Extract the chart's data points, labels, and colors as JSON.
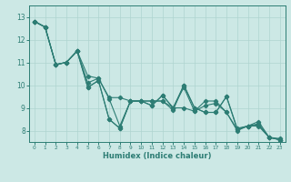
{
  "title": "",
  "xlabel": "Humidex (Indice chaleur)",
  "ylabel": "",
  "bg_color": "#cce8e5",
  "line_color": "#2d7d74",
  "grid_color": "#afd4d0",
  "xlim": [
    -0.5,
    23.5
  ],
  "ylim": [
    7.5,
    13.5
  ],
  "yticks": [
    8,
    9,
    10,
    11,
    12,
    13
  ],
  "xticks": [
    0,
    1,
    2,
    3,
    4,
    5,
    6,
    7,
    8,
    9,
    10,
    11,
    12,
    13,
    14,
    15,
    16,
    17,
    18,
    19,
    20,
    21,
    22,
    23
  ],
  "series": [
    [
      12.8,
      12.55,
      10.9,
      11.0,
      11.5,
      9.9,
      10.2,
      8.5,
      8.1,
      9.3,
      9.3,
      9.1,
      9.55,
      9.0,
      9.0,
      8.85,
      9.3,
      9.3,
      8.8,
      8.0,
      8.2,
      8.2,
      7.7,
      7.6
    ],
    [
      12.8,
      12.55,
      10.9,
      11.0,
      11.5,
      10.1,
      10.3,
      9.4,
      8.2,
      9.3,
      9.3,
      9.3,
      9.3,
      8.9,
      10.0,
      9.0,
      8.8,
      8.8,
      9.5,
      8.05,
      8.2,
      8.4,
      7.7,
      7.6
    ],
    [
      12.8,
      12.55,
      10.9,
      11.0,
      11.5,
      9.9,
      10.2,
      8.5,
      8.1,
      9.3,
      9.3,
      9.1,
      9.55,
      9.0,
      9.9,
      8.85,
      9.1,
      9.2,
      8.8,
      8.05,
      8.2,
      8.25,
      7.7,
      7.65
    ],
    [
      12.8,
      12.55,
      10.9,
      11.0,
      11.5,
      10.4,
      10.3,
      9.45,
      9.45,
      9.3,
      9.3,
      9.3,
      9.3,
      9.0,
      10.0,
      9.0,
      8.8,
      8.8,
      9.5,
      8.1,
      8.2,
      8.3,
      7.7,
      7.6
    ]
  ]
}
